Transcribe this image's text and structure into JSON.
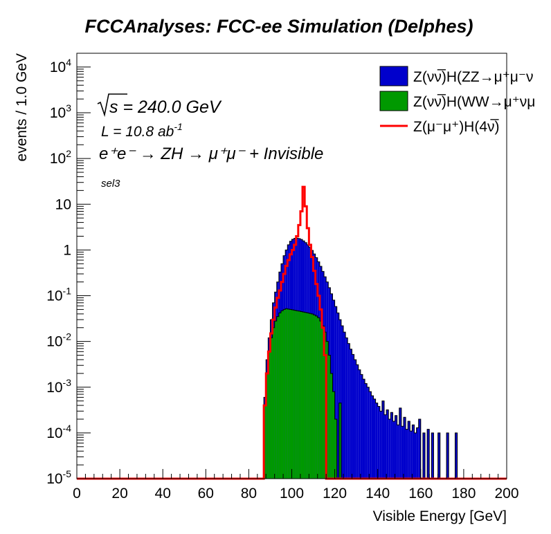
{
  "chart_data": {
    "type": "histogram",
    "title": "FCCAnalyses: FCC-ee Simulation (Delphes)",
    "xlabel": "Visible Energy [GeV]",
    "ylabel": "events / 1.0 GeV",
    "xlim": [
      0,
      200
    ],
    "ylim": [
      1e-05,
      20000
    ],
    "yscale": "log",
    "bin_width": 1,
    "grid": false,
    "legend_position": "top-right",
    "x_ticks": [
      "0",
      "20",
      "40",
      "60",
      "80",
      "100",
      "120",
      "140",
      "160",
      "180",
      "200"
    ],
    "y_ticks": [
      {
        "base": "10",
        "exp": "-5"
      },
      {
        "base": "10",
        "exp": "-4"
      },
      {
        "base": "10",
        "exp": "-3"
      },
      {
        "base": "10",
        "exp": "-2"
      },
      {
        "base": "10",
        "exp": "-1"
      },
      {
        "base": "1",
        "exp": ""
      },
      {
        "base": "10",
        "exp": ""
      },
      {
        "base": "10",
        "exp": "2"
      },
      {
        "base": "10",
        "exp": "3"
      },
      {
        "base": "10",
        "exp": "4"
      }
    ],
    "annotations": {
      "sqrt_s_prefix": "s",
      "sqrt_s_value": " = 240.0 GeV",
      "lumi_main": "L = 10.8 ab",
      "lumi_exp": "-1",
      "process": "e⁺e⁻ → ZH → μ⁺μ⁻ + Invisible",
      "selection": "sel3"
    },
    "legend": [
      {
        "label": "Z(νν̅)H(ZZ→μ⁺μ⁻ν",
        "style": "fill",
        "color": "#0000cc"
      },
      {
        "label": "Z(νν̅)H(WW→μ⁺νμ",
        "style": "fill",
        "color": "#009900"
      },
      {
        "label": "Z(μ⁻μ⁺)H(4ν̅)",
        "style": "line",
        "color": "#ff0000"
      }
    ],
    "series": [
      {
        "name": "Z(νν̅)H(ZZ→μ⁺μ⁻ν",
        "style": "stacked-fill",
        "color": "#0000cc",
        "x_start": 85,
        "values": [
          1e-05,
          1e-05,
          0.0006,
          0.004,
          0.012,
          0.03,
          0.07,
          0.12,
          0.2,
          0.33,
          0.5,
          0.75,
          1.0,
          1.3,
          1.55,
          1.72,
          1.8,
          1.82,
          1.78,
          1.7,
          1.58,
          1.45,
          1.3,
          1.14,
          0.98,
          0.82,
          0.68,
          0.55,
          0.44,
          0.34,
          0.26,
          0.2,
          0.15,
          0.11,
          0.08,
          0.058,
          0.042,
          0.03,
          0.022,
          0.016,
          0.012,
          0.009,
          0.0068,
          0.0052,
          0.004,
          0.0031,
          0.0024,
          0.0019,
          0.0015,
          0.0012,
          0.001,
          0.0008,
          0.00065,
          0.00055,
          0.00045,
          0.00038,
          0.0003,
          0.0005,
          0.00025,
          0.00032,
          0.0002,
          0.00028,
          0.00018,
          0.00024,
          0.00015,
          0.00035,
          0.00014,
          0.00022,
          0.00012,
          0.00018,
          0.00011,
          0.00015,
          0.0001,
          0.00013,
          0.0002,
          1e-05,
          0.0001,
          1e-05,
          0.00012,
          1e-05,
          0.0001,
          1e-05,
          1e-05,
          0.0001,
          1e-05,
          1e-05,
          1e-05,
          0.0001,
          1e-05,
          1e-05,
          1e-05,
          0.0001,
          1e-05,
          1e-05,
          1e-05
        ]
      },
      {
        "name": "Z(νν̅)H(WW→μ⁺νμ",
        "style": "stacked-fill",
        "color": "#009900",
        "x_start": 85,
        "values": [
          1e-05,
          1e-05,
          0.0004,
          0.002,
          0.006,
          0.012,
          0.02,
          0.028,
          0.035,
          0.042,
          0.047,
          0.05,
          0.052,
          0.051,
          0.05,
          0.049,
          0.048,
          0.047,
          0.046,
          0.045,
          0.044,
          0.043,
          0.042,
          0.041,
          0.04,
          0.038,
          0.036,
          0.033,
          0.028,
          0.022,
          0.016,
          0.01,
          0.005,
          0.002,
          0.0008,
          0.0002,
          1e-05,
          0.00045,
          1e-05
        ]
      },
      {
        "name": "Z(μ⁻μ⁺)H(4ν̅)",
        "style": "step-line",
        "color": "#ff0000",
        "x_start": 85,
        "values": [
          1e-05,
          1e-05,
          0.0004,
          0.002,
          0.006,
          0.015,
          0.03,
          0.055,
          0.09,
          0.13,
          0.2,
          0.3,
          0.45,
          0.6,
          0.8,
          1.0,
          1.3,
          2.0,
          3.5,
          7.0,
          24.0,
          9.0,
          3.0,
          1.3,
          0.7,
          0.35,
          0.18,
          0.1,
          0.05,
          0.02,
          0.005,
          1e-05
        ]
      }
    ]
  }
}
